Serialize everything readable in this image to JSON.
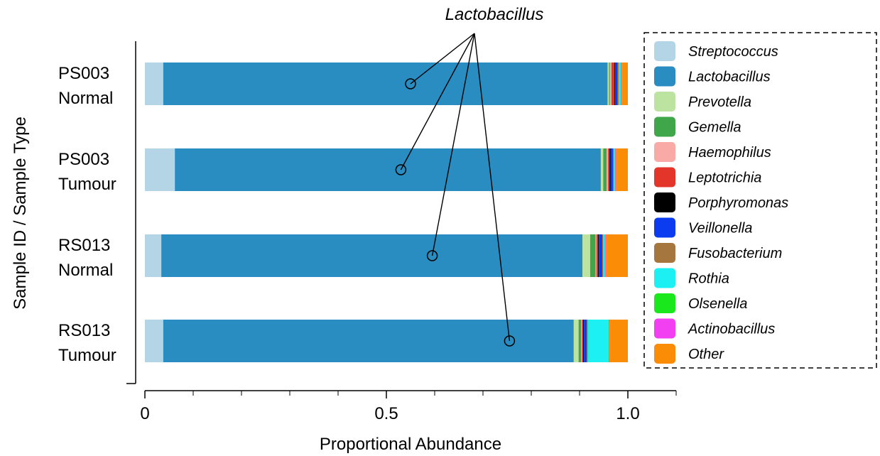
{
  "chart_data": {
    "type": "bar",
    "orientation": "horizontal",
    "stacked": true,
    "xlabel": "Proportional Abundance",
    "ylabel": "Sample ID / Sample Type",
    "xlim": [
      0,
      1.1
    ],
    "xticks": [
      {
        "value": 0,
        "label": "0"
      },
      {
        "value": 0.5,
        "label": "0.5"
      },
      {
        "value": 1.0,
        "label": "1.0"
      }
    ],
    "minor_ticks": [
      0.1,
      0.2,
      0.3,
      0.4,
      0.6,
      0.7,
      0.8,
      0.9,
      1.1
    ],
    "grid": false,
    "legend_position": "right",
    "categories": [
      {
        "line1": "PS003",
        "line2": "Normal"
      },
      {
        "line1": "PS003",
        "line2": "Tumour"
      },
      {
        "line1": "RS013",
        "line2": "Normal"
      },
      {
        "line1": "RS013",
        "line2": "Tumour"
      }
    ],
    "series": [
      {
        "name": "Streptococcus",
        "color": "#b3d5e6",
        "values": [
          0.038,
          0.062,
          0.034,
          0.038
        ]
      },
      {
        "name": "Lactobacillus",
        "color": "#2a8dc2",
        "values": [
          0.92,
          0.882,
          0.872,
          0.85
        ]
      },
      {
        "name": "Prevotella",
        "color": "#bde3a0",
        "values": [
          0.003,
          0.005,
          0.016,
          0.01
        ]
      },
      {
        "name": "Gemella",
        "color": "#3fa64a",
        "values": [
          0.002,
          0.007,
          0.011,
          0.005
        ]
      },
      {
        "name": "Haemophilus",
        "color": "#f9aaa6",
        "values": [
          0.003,
          0.003,
          0.002,
          0.002
        ]
      },
      {
        "name": "Leptotrichia",
        "color": "#e3352a",
        "values": [
          0.006,
          0.003,
          0.003,
          0.002
        ]
      },
      {
        "name": "Porphyromonas",
        "color": "#000000",
        "values": [
          0.002,
          0.002,
          0.002,
          0.002
        ]
      },
      {
        "name": "Veillonella",
        "color": "#0b3cf0",
        "values": [
          0.005,
          0.005,
          0.007,
          0.006
        ]
      },
      {
        "name": "Fusobacterium",
        "color": "#a5773f",
        "values": [
          0.002,
          0.002,
          0.002,
          0.002
        ]
      },
      {
        "name": "Rothia",
        "color": "#1df0f2",
        "values": [
          0.004,
          0.002,
          0.003,
          0.043
        ]
      },
      {
        "name": "Olsenella",
        "color": "#19e81d",
        "values": [
          0.001,
          0.001,
          0.001,
          0.001
        ]
      },
      {
        "name": "Actinobacillus",
        "color": "#f23ff2",
        "values": [
          0.001,
          0.001,
          0.001,
          0.001
        ]
      },
      {
        "name": "Other",
        "color": "#fb8c05",
        "values": [
          0.013,
          0.025,
          0.046,
          0.038
        ]
      }
    ],
    "annotation": {
      "text": "Lactobacillus",
      "points": [
        0.55,
        0.53,
        0.595,
        0.755
      ]
    }
  }
}
